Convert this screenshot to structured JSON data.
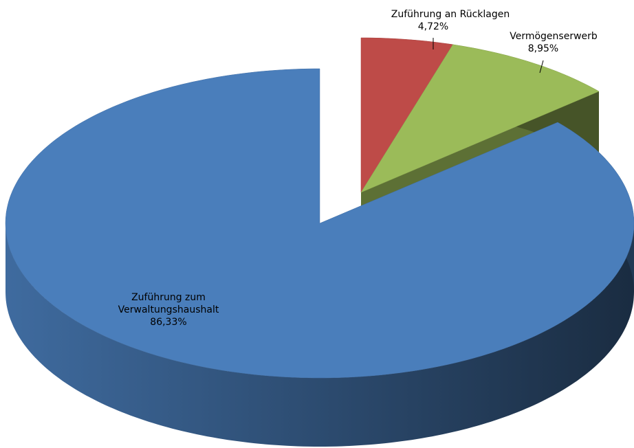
{
  "chart_data": {
    "type": "pie",
    "categories": [
      "Zuführung zum Verwaltungshaushalt",
      "Zuführung an Rücklagen",
      "Vermögenserwerb"
    ],
    "values": [
      86.33,
      4.72,
      8.95
    ],
    "value_labels": [
      "86,33%",
      "4,72%",
      "8,95%"
    ],
    "colors": [
      "#4a7ebb",
      "#be4b48",
      "#9bbb59"
    ]
  }
}
